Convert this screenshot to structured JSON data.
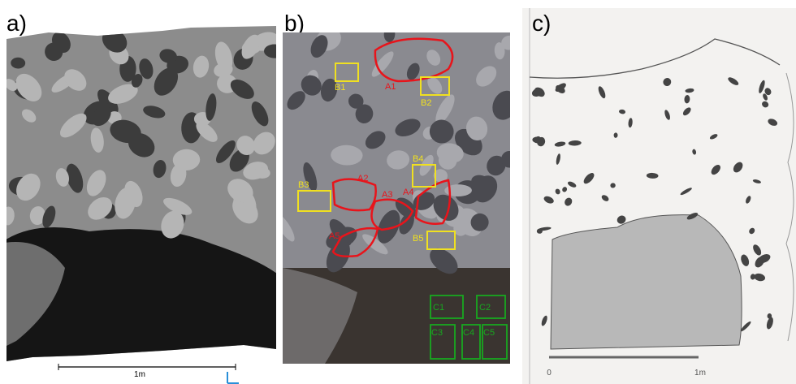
{
  "panel_a": {
    "label": "a)",
    "scale_label": "1m"
  },
  "panel_b": {
    "label": "b)",
    "a_regions": [
      "A1",
      "A2",
      "A3",
      "A4",
      "A5"
    ],
    "b_regions": [
      "B1",
      "B2",
      "B3",
      "B4",
      "B5"
    ],
    "c_regions": [
      "C1",
      "C2",
      "C3",
      "C4",
      "C5"
    ]
  },
  "panel_c": {
    "label": "c)",
    "scale_start": "0",
    "scale_end": "1m"
  }
}
